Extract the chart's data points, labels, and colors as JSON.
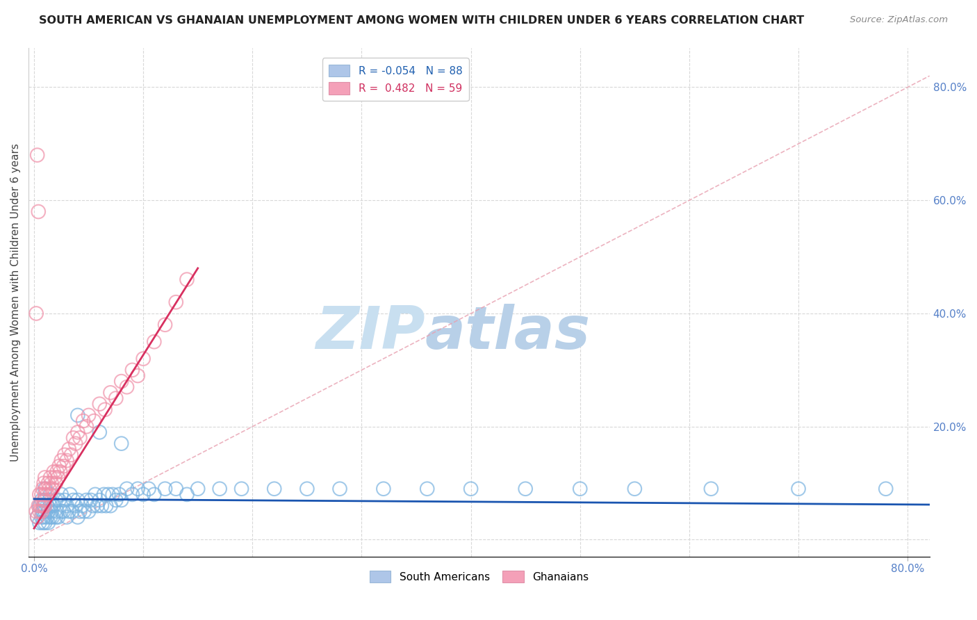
{
  "title": "SOUTH AMERICAN VS GHANAIAN UNEMPLOYMENT AMONG WOMEN WITH CHILDREN UNDER 6 YEARS CORRELATION CHART",
  "source": "Source: ZipAtlas.com",
  "ylabel": "Unemployment Among Women with Children Under 6 years",
  "xlim": [
    -0.005,
    0.82
  ],
  "ylim": [
    -0.03,
    0.87
  ],
  "legend_r_sa": "R = -0.054",
  "legend_n_sa": "N = 88",
  "legend_r_gh": "R =  0.482",
  "legend_n_gh": "N = 59",
  "watermark_zip": "ZIP",
  "watermark_atlas": "atlas",
  "watermark_color_zip": "#c8dff0",
  "watermark_color_atlas": "#b8d0e8",
  "south_american_color": "#7ab3e0",
  "ghanaian_color": "#f090a8",
  "trend_sa_color": "#1a55b0",
  "trend_gh_color": "#d83060",
  "ref_line_color": "#e8a0b0",
  "background_color": "#ffffff",
  "grid_color": "#d8d8d8",
  "title_color": "#222222",
  "source_color": "#888888",
  "tick_color": "#5580c8",
  "ylabel_color": "#444444",
  "sa_x": [
    0.003,
    0.005,
    0.005,
    0.007,
    0.007,
    0.008,
    0.008,
    0.009,
    0.009,
    0.01,
    0.01,
    0.01,
    0.01,
    0.012,
    0.012,
    0.013,
    0.013,
    0.014,
    0.015,
    0.015,
    0.015,
    0.016,
    0.017,
    0.018,
    0.02,
    0.02,
    0.021,
    0.022,
    0.023,
    0.025,
    0.025,
    0.027,
    0.028,
    0.03,
    0.03,
    0.032,
    0.033,
    0.035,
    0.036,
    0.038,
    0.04,
    0.04,
    0.042,
    0.044,
    0.046,
    0.048,
    0.05,
    0.052,
    0.054,
    0.056,
    0.058,
    0.06,
    0.062,
    0.064,
    0.066,
    0.068,
    0.07,
    0.072,
    0.075,
    0.078,
    0.08,
    0.085,
    0.09,
    0.095,
    0.1,
    0.105,
    0.11,
    0.12,
    0.13,
    0.14,
    0.15,
    0.17,
    0.19,
    0.22,
    0.25,
    0.28,
    0.32,
    0.36,
    0.4,
    0.45,
    0.5,
    0.55,
    0.62,
    0.7,
    0.78,
    0.04,
    0.06,
    0.08
  ],
  "sa_y": [
    0.04,
    0.03,
    0.06,
    0.04,
    0.07,
    0.03,
    0.05,
    0.04,
    0.06,
    0.03,
    0.05,
    0.07,
    0.09,
    0.04,
    0.06,
    0.03,
    0.05,
    0.07,
    0.04,
    0.06,
    0.08,
    0.05,
    0.04,
    0.06,
    0.04,
    0.07,
    0.05,
    0.04,
    0.07,
    0.05,
    0.08,
    0.05,
    0.07,
    0.04,
    0.06,
    0.05,
    0.08,
    0.05,
    0.07,
    0.06,
    0.04,
    0.07,
    0.05,
    0.06,
    0.05,
    0.07,
    0.05,
    0.07,
    0.06,
    0.08,
    0.06,
    0.07,
    0.06,
    0.08,
    0.06,
    0.08,
    0.06,
    0.08,
    0.07,
    0.08,
    0.07,
    0.09,
    0.08,
    0.09,
    0.08,
    0.09,
    0.08,
    0.09,
    0.09,
    0.08,
    0.09,
    0.09,
    0.09,
    0.09,
    0.09,
    0.09,
    0.09,
    0.09,
    0.09,
    0.09,
    0.09,
    0.09,
    0.09,
    0.09,
    0.09,
    0.22,
    0.19,
    0.17
  ],
  "gh_x": [
    0.002,
    0.003,
    0.004,
    0.005,
    0.005,
    0.006,
    0.007,
    0.007,
    0.008,
    0.008,
    0.009,
    0.009,
    0.01,
    0.01,
    0.01,
    0.011,
    0.012,
    0.013,
    0.014,
    0.015,
    0.016,
    0.017,
    0.018,
    0.019,
    0.02,
    0.021,
    0.022,
    0.023,
    0.024,
    0.025,
    0.027,
    0.028,
    0.03,
    0.032,
    0.034,
    0.036,
    0.038,
    0.04,
    0.042,
    0.045,
    0.048,
    0.05,
    0.055,
    0.06,
    0.065,
    0.07,
    0.075,
    0.08,
    0.085,
    0.09,
    0.095,
    0.1,
    0.11,
    0.12,
    0.13,
    0.14,
    0.002,
    0.004,
    0.003
  ],
  "gh_y": [
    0.05,
    0.04,
    0.06,
    0.05,
    0.08,
    0.06,
    0.05,
    0.08,
    0.06,
    0.09,
    0.07,
    0.1,
    0.06,
    0.08,
    0.11,
    0.09,
    0.08,
    0.1,
    0.09,
    0.11,
    0.1,
    0.09,
    0.12,
    0.11,
    0.1,
    0.12,
    0.11,
    0.13,
    0.12,
    0.14,
    0.13,
    0.15,
    0.14,
    0.16,
    0.15,
    0.18,
    0.17,
    0.19,
    0.18,
    0.21,
    0.2,
    0.22,
    0.21,
    0.24,
    0.23,
    0.26,
    0.25,
    0.28,
    0.27,
    0.3,
    0.29,
    0.32,
    0.35,
    0.38,
    0.42,
    0.46,
    0.4,
    0.58,
    0.68
  ]
}
